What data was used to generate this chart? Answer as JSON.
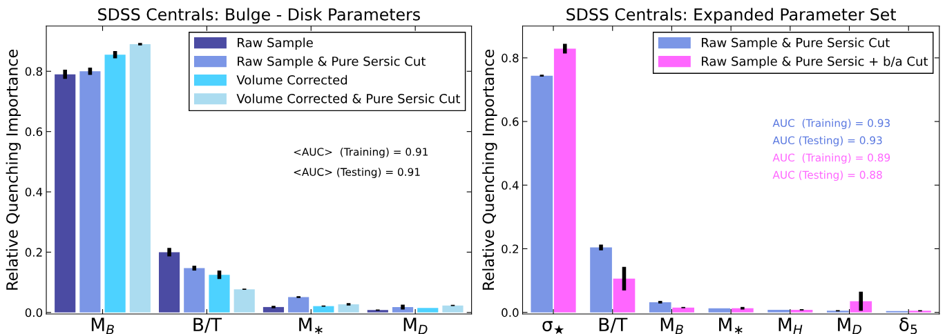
{
  "chart_data": [
    {
      "type": "bar",
      "title": "SDSS Centrals: Bulge - Disk Parameters",
      "ylabel": "Relative Quenching Importance",
      "categories": [
        "M$_{B}$",
        "B/T",
        "M$_{∗}$",
        "M$_{D}$"
      ],
      "series": [
        {
          "name": "Raw Sample",
          "color": "#4b4ba3",
          "values": [
            0.79,
            0.2,
            0.018,
            0.008
          ],
          "errors": [
            0.015,
            0.014,
            0.004,
            0.002
          ]
        },
        {
          "name": "Raw Sample & Pure Sersic Cut",
          "color": "#7b96e6",
          "values": [
            0.8,
            0.147,
            0.051,
            0.018
          ],
          "errors": [
            0.012,
            0.008,
            0.003,
            0.008
          ]
        },
        {
          "name": "Volume Corrected",
          "color": "#4dd2ff",
          "values": [
            0.855,
            0.125,
            0.021,
            0.015
          ],
          "errors": [
            0.012,
            0.014,
            0.002,
            null
          ]
        },
        {
          "name": "Volume Corrected & Pure Sersic Cut",
          "color": "#abdcf0",
          "values": [
            0.89,
            0.077,
            0.027,
            0.023
          ],
          "errors": [
            0.004,
            0.002,
            0.004,
            0.002
          ]
        }
      ],
      "ylim": [
        -0.005,
        0.95
      ],
      "yticks": [
        {
          "value": 0,
          "label": "0.0"
        },
        0.2,
        0.4,
        0.6,
        0.8
      ],
      "legend": "top right",
      "grid": false,
      "annotations": [
        "<AUC>  (Training) = 0.91",
        "<AUC> (Testing) = 0.91"
      ]
    },
    {
      "type": "bar",
      "title": "SDSS Centrals: Expanded Parameter Set",
      "ylabel": "Relative Quenching Importance",
      "categories": [
        "σ$_{★}$",
        "B/T",
        "M$_{B}$",
        "M$_{∗}$",
        "M$_{H}$",
        "M$_{D}$",
        "δ$_{5}$"
      ],
      "series": [
        {
          "name": "Raw Sample & Pure Sersic Cut",
          "color": "#7b96e6",
          "values": [
            0.744,
            0.204,
            0.032,
            0.013,
            0.008,
            0.005,
            0.004
          ],
          "errors": [
            0.003,
            0.009,
            0.004,
            null,
            null,
            0.002,
            null
          ]
        },
        {
          "name": "Raw Sample & Pure Sersic + b/a Cut",
          "color": "#ff66ff",
          "values": [
            0.829,
            0.106,
            0.015,
            0.013,
            0.008,
            0.035,
            0.005
          ],
          "errors": [
            0.015,
            0.037,
            0.002,
            0.004,
            0.002,
            0.03,
            0.002
          ]
        }
      ],
      "ylim": [
        -0.005,
        0.9
      ],
      "yticks": [
        {
          "value": 0,
          "label": "0.0"
        },
        0.2,
        0.4,
        0.6,
        0.8
      ],
      "legend": "top right",
      "grid": false,
      "annotations": [
        "AUC  (Training) = 0.93",
        "AUC (Testing) = 0.93",
        "AUC  (Training) = 0.89",
        "AUC (Testing) = 0.88"
      ]
    }
  ]
}
